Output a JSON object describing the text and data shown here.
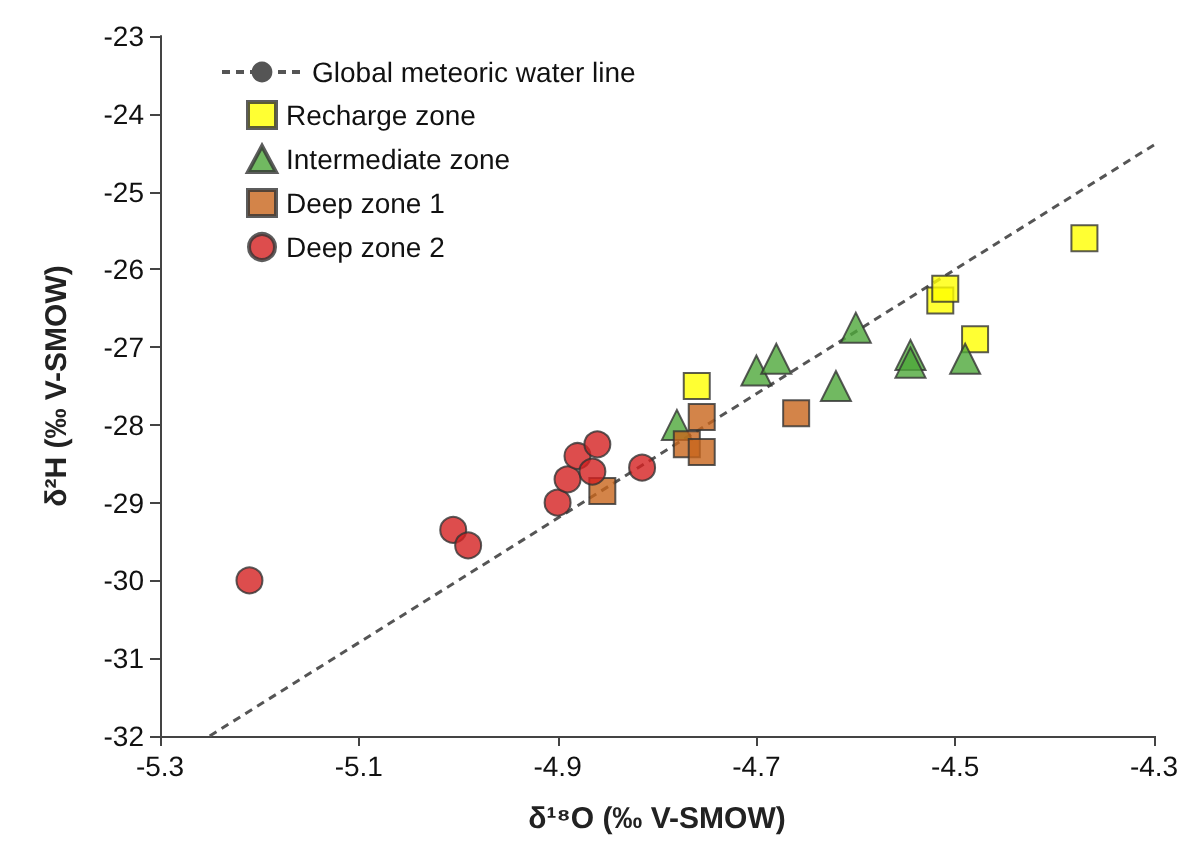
{
  "chart_data": {
    "type": "scatter",
    "xlabel": "δ¹⁸O (‰ V-SMOW)",
    "ylabel": "δ²H (‰ V-SMOW)",
    "xlim": [
      -5.3,
      -4.3
    ],
    "xticks": [
      -5.3,
      -5.1,
      -4.9,
      -4.7,
      -4.5,
      -4.3
    ],
    "ylim": [
      -32,
      -23
    ],
    "yticks": [
      -32,
      -31,
      -30,
      -29,
      -28,
      -27,
      -26,
      -25,
      -24,
      -23
    ],
    "grid": false,
    "legend": "top left",
    "series": [
      {
        "name": "Global meteoric water line",
        "type": "line",
        "color": "#555555",
        "line_style": "dashed",
        "marker": "none",
        "x": [
          -5.25,
          -4.3
        ],
        "values": [
          -32,
          -24.4
        ]
      },
      {
        "name": "Recharge zone",
        "color": "#ffff00",
        "marker": "square",
        "x": [
          -4.76,
          -4.515,
          -4.51,
          -4.48,
          -4.37
        ],
        "values": [
          -27.5,
          -26.4,
          -26.25,
          -26.9,
          -25.6
        ]
      },
      {
        "name": "Intermediate zone",
        "color": "#4ea83a",
        "marker": "triangle",
        "x": [
          -4.78,
          -4.7,
          -4.68,
          -4.62,
          -4.6,
          -4.545,
          -4.545,
          -4.49
        ],
        "values": [
          -28,
          -27.3,
          -27.15,
          -27.5,
          -26.75,
          -27.1,
          -27.2,
          -27.15
        ]
      },
      {
        "name": "Deep zone 1",
        "color": "#c8651b",
        "marker": "square",
        "x": [
          -4.755,
          -4.77,
          -4.755,
          -4.66,
          -4.855
        ],
        "values": [
          -27.9,
          -28.25,
          -28.35,
          -27.85,
          -28.85
        ]
      },
      {
        "name": "Deep zone 2",
        "color": "#d42020",
        "marker": "circle",
        "x": [
          -5.21,
          -5.005,
          -4.99,
          -4.9,
          -4.89,
          -4.88,
          -4.86,
          -4.865,
          -4.815
        ],
        "values": [
          -30,
          -29.35,
          -29.55,
          -29.0,
          -28.7,
          -28.4,
          -28.25,
          -28.6,
          -28.55
        ]
      }
    ]
  }
}
